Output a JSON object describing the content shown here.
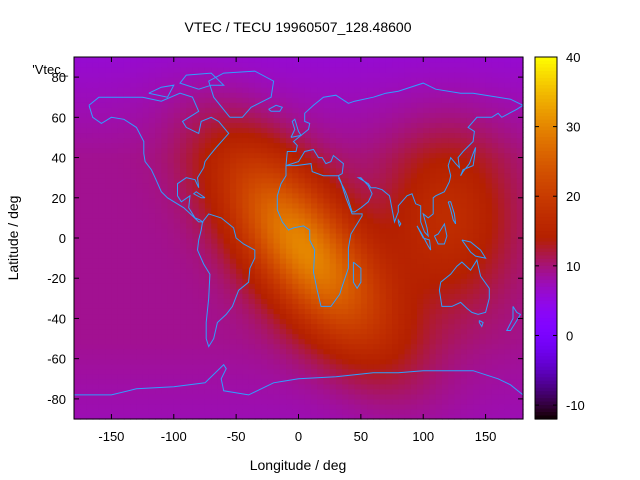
{
  "chart_data": {
    "type": "heatmap",
    "title": "VTEC / TECU 19960507_128.48600",
    "xlabel": "Longitude / deg",
    "ylabel": "Latitude / deg",
    "series_label": "'Vtec_",
    "xlim": [
      -180,
      180
    ],
    "ylim": [
      -90,
      90
    ],
    "x_ticks": [
      -150,
      -100,
      -50,
      0,
      50,
      100,
      150
    ],
    "y_ticks": [
      -80,
      -60,
      -40,
      -20,
      0,
      20,
      40,
      60,
      80
    ],
    "colorbar": {
      "range": [
        -12,
        40
      ],
      "ticks": [
        -10,
        0,
        10,
        20,
        30,
        40
      ],
      "palette": "gnuplot"
    },
    "vtec_model": {
      "background_tecu": 9.0,
      "polar_north_tecu": 6.0,
      "crest_center_lon": 0,
      "crest_tilt_deg_lon_per_deg_lat": -0.9,
      "crest_peak_tecu": 30,
      "secondary_east_lon": 120,
      "secondary_east_tecu": 17
    },
    "coastline_color": "#2f9fff"
  }
}
